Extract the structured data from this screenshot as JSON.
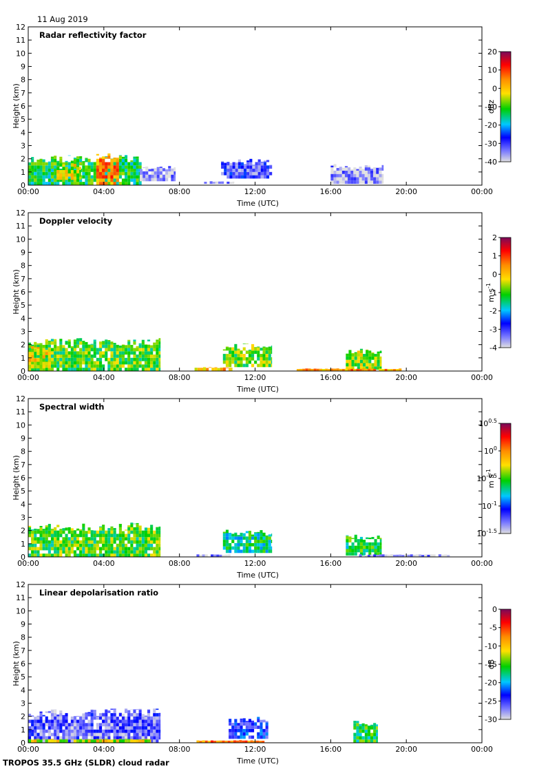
{
  "header": {
    "date": "11 Aug 2019"
  },
  "footer": {
    "source": "TROPOS 35.5 GHz (SLDR) cloud radar"
  },
  "chart_data": [
    {
      "type": "heatmap",
      "title": "Radar reflectivity factor",
      "xlabel": "Time (UTC)",
      "ylabel": "Height (km)",
      "xlim": [
        0,
        24
      ],
      "ylim": [
        0,
        12
      ],
      "xticks": [
        "00:00",
        "04:00",
        "08:00",
        "12:00",
        "16:00",
        "20:00",
        "00:00"
      ],
      "yticks": [
        0,
        1,
        2,
        3,
        4,
        5,
        6,
        7,
        8,
        9,
        10,
        11,
        12
      ],
      "colorbar": {
        "label": "dBz",
        "ticks": [
          "20",
          "10",
          "0",
          "-10",
          "-20",
          "-30",
          "-40"
        ],
        "range": [
          -40,
          20
        ],
        "palette": "rainbow-gray-low"
      },
      "regions": [
        {
          "t0": 0.0,
          "t1": 6.0,
          "h0": 0.0,
          "h1": 2.3,
          "level": 0.45
        },
        {
          "t0": 3.6,
          "t1": 4.8,
          "h0": 0.0,
          "h1": 2.6,
          "level": 0.75
        },
        {
          "t0": 1.5,
          "t1": 2.8,
          "h0": 0.4,
          "h1": 1.8,
          "level": 0.6
        },
        {
          "t0": 5.9,
          "t1": 7.8,
          "h0": 0.3,
          "h1": 1.6,
          "level": 0.05
        },
        {
          "t0": 9.3,
          "t1": 10.9,
          "h0": 0.1,
          "h1": 0.3,
          "level": 0.05
        },
        {
          "t0": 10.2,
          "t1": 12.9,
          "h0": 0.5,
          "h1": 2.0,
          "level": 0.15
        },
        {
          "t0": 16.0,
          "t1": 18.8,
          "h0": 0.1,
          "h1": 1.6,
          "level": 0.06
        }
      ]
    },
    {
      "type": "heatmap",
      "title": "Doppler velocity",
      "xlabel": "Time (UTC)",
      "ylabel": "Height (km)",
      "xlim": [
        0,
        24
      ],
      "ylim": [
        0,
        12
      ],
      "xticks": [
        "00:00",
        "04:00",
        "08:00",
        "12:00",
        "16:00",
        "20:00",
        "00:00"
      ],
      "yticks": [
        0,
        1,
        2,
        3,
        4,
        5,
        6,
        7,
        8,
        9,
        10,
        11,
        12
      ],
      "colorbar": {
        "label": "m s-1",
        "ticks": [
          "2",
          "1",
          "0",
          "-1",
          "-2",
          "-3",
          "-4"
        ],
        "range": [
          -4,
          2
        ],
        "palette": "rainbow-gray-low"
      },
      "regions": [
        {
          "t0": 0.0,
          "t1": 7.0,
          "h0": 0.0,
          "h1": 2.5,
          "level": 0.5
        },
        {
          "t0": 0.0,
          "t1": 1.2,
          "h0": 0.2,
          "h1": 1.9,
          "level": 0.62
        },
        {
          "t0": 8.8,
          "t1": 10.8,
          "h0": 0.0,
          "h1": 0.3,
          "level": 0.7
        },
        {
          "t0": 10.3,
          "t1": 12.9,
          "h0": 0.3,
          "h1": 2.1,
          "level": 0.52
        },
        {
          "t0": 16.8,
          "t1": 18.7,
          "h0": 0.1,
          "h1": 1.7,
          "level": 0.55
        },
        {
          "t0": 14.2,
          "t1": 20.0,
          "h0": 0.0,
          "h1": 0.2,
          "level": 0.72
        }
      ]
    },
    {
      "type": "heatmap",
      "title": "Spectral width",
      "xlabel": "Time (UTC)",
      "ylabel": "Height (km)",
      "xlim": [
        0,
        24
      ],
      "ylim": [
        0,
        12
      ],
      "xticks": [
        "00:00",
        "04:00",
        "08:00",
        "12:00",
        "16:00",
        "20:00",
        "00:00"
      ],
      "yticks": [
        0,
        1,
        2,
        3,
        4,
        5,
        6,
        7,
        8,
        9,
        10,
        11,
        12
      ],
      "colorbar": {
        "label": "m s-1",
        "ticks": [
          "10^0.5",
          "10^0",
          "10^-0.5",
          "10^-1",
          "10^-1.5"
        ],
        "range": [
          -1.5,
          0.5
        ],
        "palette": "rainbow-gray-low"
      },
      "regions": [
        {
          "t0": 0.0,
          "t1": 7.0,
          "h0": 0.0,
          "h1": 2.6,
          "level": 0.5
        },
        {
          "t0": 8.9,
          "t1": 10.8,
          "h0": 0.0,
          "h1": 0.2,
          "level": 0.05
        },
        {
          "t0": 10.3,
          "t1": 12.9,
          "h0": 0.3,
          "h1": 2.1,
          "level": 0.42
        },
        {
          "t0": 16.8,
          "t1": 18.7,
          "h0": 0.1,
          "h1": 1.7,
          "level": 0.45
        },
        {
          "t0": 17.5,
          "t1": 22.4,
          "h0": 0.0,
          "h1": 0.2,
          "level": 0.05
        }
      ]
    },
    {
      "type": "heatmap",
      "title": "Linear depolarisation ratio",
      "xlabel": "Time (UTC)",
      "ylabel": "Height (km)",
      "xlim": [
        0,
        24
      ],
      "ylim": [
        0,
        12
      ],
      "xticks": [
        "00:00",
        "04:00",
        "08:00",
        "12:00",
        "16:00",
        "20:00",
        "00:00"
      ],
      "yticks": [
        0,
        1,
        2,
        3,
        4,
        5,
        6,
        7,
        8,
        9,
        10,
        11,
        12
      ],
      "colorbar": {
        "label": "dB",
        "ticks": [
          "0",
          "-5",
          "-10",
          "-15",
          "-20",
          "-25",
          "-30"
        ],
        "range": [
          -30,
          0
        ],
        "palette": "rainbow-gray-low"
      },
      "regions": [
        {
          "t0": 0.0,
          "t1": 7.0,
          "h0": 0.0,
          "h1": 2.6,
          "level": 0.12
        },
        {
          "t0": 10.6,
          "t1": 12.7,
          "h0": 0.3,
          "h1": 2.0,
          "level": 0.2
        },
        {
          "t0": 0.0,
          "t1": 6.5,
          "h0": 0.0,
          "h1": 0.3,
          "level": 0.6
        },
        {
          "t0": 8.9,
          "t1": 12.5,
          "h0": 0.0,
          "h1": 0.2,
          "level": 0.75
        },
        {
          "t0": 17.2,
          "t1": 18.5,
          "h0": 0.0,
          "h1": 1.7,
          "level": 0.45
        }
      ]
    }
  ]
}
